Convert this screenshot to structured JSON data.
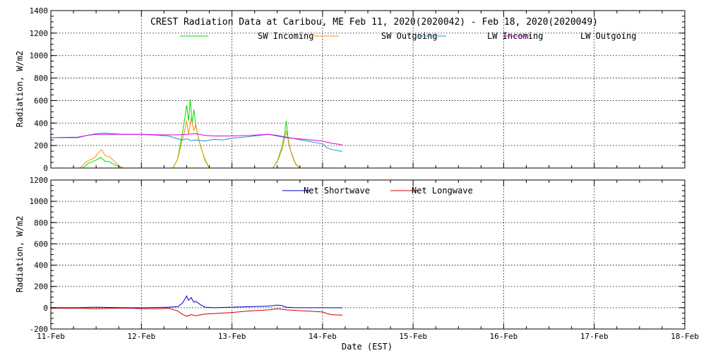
{
  "chart_data": [
    {
      "type": "line",
      "title": "CREST Radiation Data at Caribou, ME   Feb 11, 2020(2020042) - Feb 18, 2020(2020049)",
      "ylabel": "Radiation, W/m2",
      "xlabel": "",
      "ylim": [
        0,
        1400
      ],
      "yticks": [
        0,
        200,
        400,
        600,
        800,
        1000,
        1200,
        1400
      ],
      "xlim": [
        0,
        7
      ],
      "grid": true,
      "legend": "top",
      "series": [
        {
          "name": "SW Incoming",
          "color": "#00dd00",
          "x": [
            0.35,
            0.42,
            0.5,
            0.55,
            0.6,
            0.65,
            0.7,
            0.75,
            0.8,
            1.35,
            1.4,
            1.45,
            1.48,
            1.5,
            1.52,
            1.54,
            1.56,
            1.58,
            1.6,
            1.62,
            1.65,
            1.7,
            1.75,
            2.45,
            2.5,
            2.55,
            2.58,
            2.6,
            2.62,
            2.65,
            2.7,
            2.75
          ],
          "y": [
            0,
            45,
            70,
            95,
            60,
            55,
            30,
            15,
            0,
            0,
            80,
            300,
            450,
            560,
            420,
            610,
            400,
            520,
            380,
            300,
            200,
            80,
            0,
            0,
            60,
            180,
            300,
            420,
            260,
            150,
            40,
            0
          ]
        },
        {
          "name": "SW Outgoing",
          "color": "#ff8c00",
          "x": [
            0.32,
            0.4,
            0.48,
            0.52,
            0.56,
            0.6,
            0.65,
            0.7,
            0.75,
            0.8,
            1.35,
            1.4,
            1.45,
            1.48,
            1.5,
            1.52,
            1.55,
            1.58,
            1.6,
            1.63,
            1.66,
            1.7,
            1.75,
            2.45,
            2.5,
            2.55,
            2.58,
            2.6,
            2.63,
            2.66,
            2.7,
            2.75
          ],
          "y": [
            0,
            60,
            90,
            130,
            165,
            110,
            100,
            60,
            20,
            0,
            0,
            80,
            250,
            340,
            420,
            300,
            440,
            330,
            390,
            260,
            180,
            70,
            0,
            0,
            55,
            160,
            260,
            330,
            210,
            120,
            35,
            0
          ]
        },
        {
          "name": "LW Incoming",
          "color": "#1e90c8",
          "x": [
            0,
            0.3,
            0.4,
            0.5,
            0.6,
            0.8,
            1.0,
            1.2,
            1.3,
            1.4,
            1.45,
            1.5,
            1.55,
            1.6,
            1.7,
            1.8,
            1.9,
            2.0,
            2.2,
            2.4,
            2.5,
            2.6,
            2.7,
            2.8,
            2.9,
            3.0,
            3.05,
            3.1,
            3.2,
            3.22
          ],
          "y": [
            270,
            270,
            290,
            305,
            310,
            300,
            300,
            290,
            285,
            260,
            250,
            260,
            245,
            250,
            240,
            255,
            250,
            265,
            280,
            300,
            290,
            275,
            260,
            245,
            230,
            215,
            180,
            165,
            150,
            150
          ]
        },
        {
          "name": "LW Outgoing",
          "color": "#dd00dd",
          "x": [
            0,
            0.3,
            0.4,
            0.5,
            0.6,
            0.8,
            1.0,
            1.2,
            1.4,
            1.5,
            1.6,
            1.7,
            1.8,
            2.0,
            2.2,
            2.4,
            2.5,
            2.6,
            2.8,
            3.0,
            3.1,
            3.2,
            3.22
          ],
          "y": [
            270,
            275,
            290,
            300,
            300,
            300,
            300,
            295,
            295,
            300,
            305,
            290,
            285,
            285,
            290,
            300,
            285,
            270,
            255,
            240,
            220,
            210,
            205
          ]
        }
      ]
    },
    {
      "type": "line",
      "title": "",
      "ylabel": "Radiation, W/m2",
      "xlabel": "Date (EST)",
      "ylim": [
        -200,
        1200
      ],
      "yticks": [
        -200,
        0,
        200,
        400,
        600,
        800,
        1000,
        1200
      ],
      "xlim": [
        0,
        7
      ],
      "xticks": [
        "11-Feb",
        "12-Feb",
        "13-Feb",
        "14-Feb",
        "15-Feb",
        "16-Feb",
        "17-Feb",
        "18-Feb"
      ],
      "grid": true,
      "legend": "top",
      "series": [
        {
          "name": "Net Shortwave",
          "color": "#0000cc",
          "x": [
            0,
            0.3,
            0.4,
            0.5,
            0.6,
            0.8,
            1.0,
            1.3,
            1.4,
            1.45,
            1.48,
            1.5,
            1.52,
            1.55,
            1.58,
            1.6,
            1.65,
            1.7,
            1.8,
            2.0,
            2.4,
            2.5,
            2.55,
            2.6,
            2.7,
            3.0,
            3.22
          ],
          "y": [
            0,
            0,
            3,
            5,
            3,
            0,
            0,
            5,
            10,
            40,
            80,
            110,
            70,
            95,
            50,
            60,
            30,
            5,
            0,
            5,
            15,
            25,
            20,
            5,
            0,
            0,
            0
          ]
        },
        {
          "name": "Net Longwave",
          "color": "#cc0000",
          "x": [
            0,
            0.3,
            0.5,
            0.7,
            0.9,
            1.0,
            1.2,
            1.3,
            1.4,
            1.45,
            1.5,
            1.55,
            1.6,
            1.7,
            1.8,
            2.0,
            2.2,
            2.4,
            2.5,
            2.6,
            2.8,
            3.0,
            3.05,
            3.1,
            3.22
          ],
          "y": [
            -5,
            -5,
            -10,
            -5,
            -5,
            -10,
            -10,
            -5,
            -30,
            -60,
            -80,
            -65,
            -75,
            -60,
            -55,
            -45,
            -30,
            -20,
            -10,
            -20,
            -30,
            -40,
            -55,
            -65,
            -70
          ]
        }
      ]
    }
  ]
}
